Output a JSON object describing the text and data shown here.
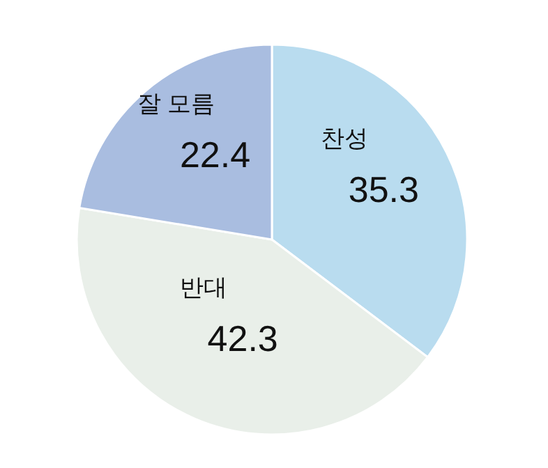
{
  "chart_data": {
    "type": "pie",
    "categories": [
      "찬성",
      "반대",
      "잘 모름"
    ],
    "values": [
      35.3,
      42.3,
      22.4
    ],
    "colors": [
      "#b9dcef",
      "#e9efe9",
      "#a9bde0"
    ],
    "data_labels": true
  }
}
